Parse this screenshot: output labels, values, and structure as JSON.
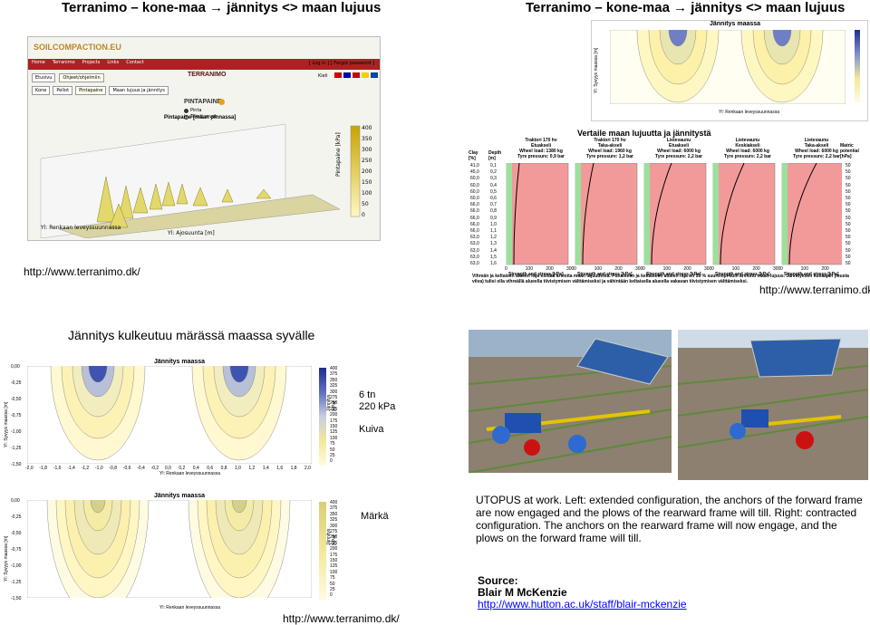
{
  "slide_left": {
    "title": "Terranimo – kone-maa → jännitys <> maan lujuus",
    "url": "http://www.terranimo.dk/"
  },
  "slide_right": {
    "title": "Terranimo – kone-maa → jännitys <> maan lujuus",
    "url": "http://www.terranimo.dk/"
  },
  "terranimo_site": {
    "logo": "SOILCOMPACTION.EU",
    "nav": [
      "Home",
      "Terranimo",
      "Projects",
      "Links",
      "Contact"
    ],
    "login": "[ Log in ] [ Forgot password ]",
    "tabs1": [
      "Etusivu",
      "Ohjeet/ohjelmiin"
    ],
    "brand": "TERRANIMO",
    "lang": "Kieli",
    "tabs2": [
      "Kone",
      "Pellot",
      "Pintapaine",
      "Maan lujuus ja jännitys"
    ],
    "section_title": "PINTAPAINE",
    "radio1": "Pinta",
    "radio2": "Teksti arvot",
    "subtitle": "Pintapaine [maan pinnassa]",
    "yaxis": "Pintapaine [kPa]",
    "xaxis_label": "Yl: Ajosuunta [m]",
    "y2_label": "Yl: Renkaan leveyssuunnassa",
    "legend_ticks": [
      "400",
      "350",
      "300",
      "250",
      "200",
      "150",
      "100",
      "50",
      "0"
    ]
  },
  "stress_small": {
    "title": "Jännitys maassa",
    "ylabel": "Yl: Syvyys maassa [m]",
    "xlabel": "Yl: Renkaan leveyssuunnassa",
    "legend_label": "Jännitys [kPa]"
  },
  "comparison": {
    "title": "Vertaile maan lujuutta ja jännitystä",
    "headers": [
      "Clay [%]",
      "Depth [m]"
    ],
    "machines": [
      {
        "name": "Traktori 170 hv",
        "axle": "Etuakseli",
        "load": "Wheel load: 1380 kg",
        "pressure": "Tyre pressure: 0,9 bar"
      },
      {
        "name": "Traktori 170 hv",
        "axle": "Taka-akseli",
        "load": "Wheel load: 1960 kg",
        "pressure": "Tyre pressure: 1,2 bar"
      },
      {
        "name": "Lietevaunu",
        "axle": "Etuakseli",
        "load": "Wheel load: 6000 kg",
        "pressure": "Tyre pressure: 2,2 bar"
      },
      {
        "name": "Lietevaunu",
        "axle": "Keskiakseli",
        "load": "Wheel load: 6000 kg",
        "pressure": "Tyre pressure: 2,2 bar"
      },
      {
        "name": "Lietevaunu",
        "axle": "Taka-akseli",
        "load": "Wheel load: 6000 kg",
        "pressure": "Tyre pressure: 2,2 bar"
      }
    ],
    "matric": "Matric potential [hPa]",
    "clay": [
      "41,0",
      "45,0",
      "60,0",
      "60,0",
      "60,0",
      "60,0",
      "66,0",
      "66,0",
      "66,0",
      "66,0",
      "66,0",
      "63,0",
      "63,0",
      "63,0",
      "63,0",
      "63,0"
    ],
    "depth": [
      "0,1",
      "0,2",
      "0,3",
      "0,4",
      "0,5",
      "0,6",
      "0,7",
      "0,8",
      "0,9",
      "1,0",
      "1,1",
      "1,2",
      "1,3",
      "1,4",
      "1,5",
      "1,6"
    ],
    "matric_vals": [
      "50",
      "50",
      "50",
      "50",
      "50",
      "50",
      "50",
      "50",
      "50",
      "50",
      "50",
      "50",
      "50",
      "50",
      "50",
      "50"
    ],
    "xaxis": "Strength and stress [kPa]",
    "ticks": [
      "0",
      "100",
      "200",
      "300"
    ],
    "note": "Vihreän ja keltaisen alueen raja esittää arvioita maan lujuudesta. Punaiseen ja keltaiseen alueen raja on 50 % suurempi kuin arvioitu maan lujuus. Jännityksen kuvaajan (musta viiva) tulisi olla vihreällä alueella tiivistymisen välttämiseksi ja vähintään keltaisella alueella vakavan tiivistymisen välttämiseksi."
  },
  "section2": {
    "title": "Jännitys kulkeutuu märässä maassa syvälle",
    "load": "6 tn",
    "pressure": "220 kPa",
    "dry": "Kuiva",
    "wet": "Märkä",
    "url": "http://www.terranimo.dk/",
    "chart_title": "Jännitys maassa",
    "ylabel": "Yl: Syvyys maassa [m]",
    "xlabel": "Yl: Renkaan leveyssuunnassa",
    "legend_label": "Jännitys [kPa]",
    "legend_ticks": [
      "400",
      "375",
      "350",
      "325",
      "300",
      "275",
      "250",
      "225",
      "200",
      "175",
      "150",
      "125",
      "100",
      "75",
      "50",
      "25",
      "0"
    ],
    "yticks": [
      "0,00",
      "-0,25",
      "-0,50",
      "-0,75",
      "-1,00",
      "-1,25",
      "-1,50"
    ],
    "xticks": [
      "-2,0",
      "-1,8",
      "-1,6",
      "-1,4",
      "-1,2",
      "-1,0",
      "-0,8",
      "-0,6",
      "-0,4",
      "-0,2",
      "0,0",
      "0,2",
      "0,4",
      "0,6",
      "0,8",
      "1,0",
      "1,2",
      "1,4",
      "1,6",
      "1,8",
      "2,0"
    ]
  },
  "utopus": {
    "caption": "UTOPUS at work. Left: extended configuration, the anchors of the forward frame are now engaged and the plows of the rearward frame will till. Right: contracted configuration. The anchors on the rearward frame will now engage, and the plows on the forward frame will till.",
    "source_label": "Source:",
    "author": "Blair M McKenzie",
    "link": "http://www.hutton.ac.uk/staff/blair-mckenzie"
  },
  "colors": {
    "accent_red": "#f29a9a",
    "green": "#9be09b",
    "contour_yellow": "#fff7c2",
    "contour_blue": "#2b3f9e",
    "soil": "#8a7a6a"
  }
}
